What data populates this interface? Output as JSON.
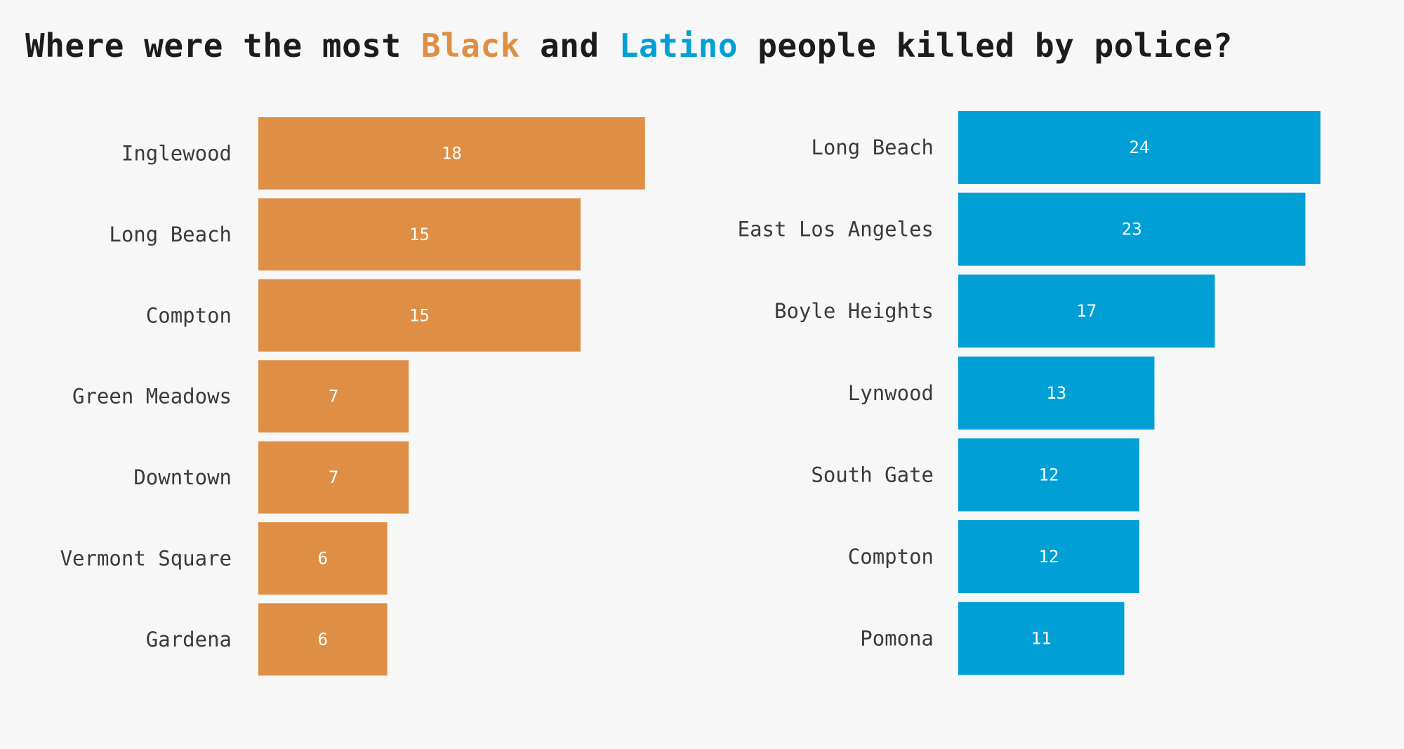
{
  "title": {
    "part1": "Where were the most ",
    "highlight1": "Black",
    "part2": " and ",
    "highlight2": "Latino",
    "part3": " people killed by police?"
  },
  "colors": {
    "black": "#de8f45",
    "latino": "#00a0d6",
    "background": "#f7f7f7",
    "title": "#1c1c1c",
    "labels": "#3a3a3a"
  },
  "chart_data": [
    {
      "type": "bar",
      "orientation": "horizontal",
      "color": "#de8f45",
      "categories": [
        "Inglewood",
        "Long Beach",
        "Compton",
        "Green Meadows",
        "Downtown",
        "Vermont Square",
        "Gardena"
      ],
      "values": [
        18,
        15,
        15,
        7,
        7,
        6,
        6
      ]
    },
    {
      "type": "bar",
      "orientation": "horizontal",
      "color": "#00a0d6",
      "categories": [
        "Long Beach",
        "East Los Angeles",
        "Boyle Heights",
        "Lynwood",
        "South Gate",
        "Compton",
        "Pomona"
      ],
      "values": [
        24,
        23,
        17,
        13,
        12,
        12,
        11
      ]
    }
  ]
}
